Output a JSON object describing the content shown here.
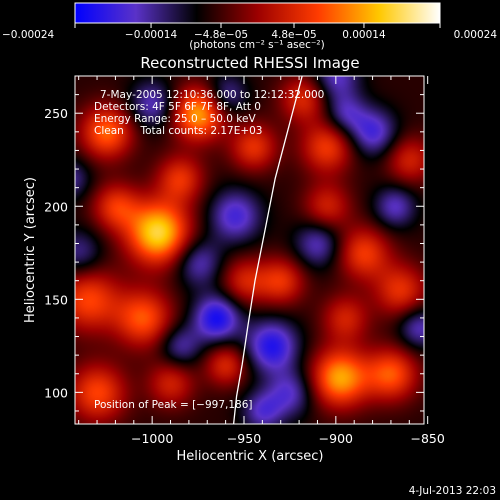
{
  "chart_data": {
    "type": "heatmap",
    "title": "Reconstructed RHESSI Image",
    "xlabel": "Heliocentric X (arcsec)",
    "ylabel": "Heliocentric Y (arcsec)",
    "xlim": [
      -1042,
      -852
    ],
    "ylim": [
      83,
      270
    ],
    "x_ticks": [
      -1000,
      -950,
      -900,
      -850
    ],
    "x_tick_labels": [
      "−1000",
      "−950",
      "−900",
      "−850"
    ],
    "y_ticks": [
      100,
      150,
      200,
      250
    ],
    "y_tick_labels": [
      "100",
      "150",
      "200",
      "250"
    ],
    "colorbar": {
      "min": -0.00024,
      "max": 0.00024,
      "tick_values": [
        -0.00024,
        -0.00014,
        -4.8e-05,
        4.8e-05,
        0.00014,
        0.00024
      ],
      "tick_labels": [
        "−0.00024",
        "−0.00014",
        "−4.8e−05",
        "4.8e−05",
        "0.00014",
        "0.00024"
      ],
      "unit_label": "(photons cm⁻² s⁻¹ asec⁻²)",
      "colors": [
        "#0000ff",
        "#5a32c8",
        "#000000",
        "#9c0000",
        "#ff3c00",
        "#ffc800",
        "#ffffff"
      ]
    },
    "annotations": {
      "time_range": "7‑May‑2005 12:10:36.000 to 12:12:32.000",
      "detectors": "Detectors: 4F 5F 6F 7F 8F, Att 0",
      "energy_range": "Energy Range: 25.0 – 50.0 keV",
      "clean_counts": "Clean     Total counts: 2.17E+03",
      "peak_position": "Position of Peak = [−997,186]"
    },
    "limb": [
      [
        -917,
        275
      ],
      [
        -925,
        245
      ],
      [
        -933,
        215
      ],
      [
        -939,
        185
      ],
      [
        -944,
        160
      ],
      [
        -948,
        135
      ],
      [
        -951,
        115
      ],
      [
        -954,
        98
      ],
      [
        -956,
        80
      ]
    ],
    "blobs": [
      [
        -997,
        186,
        0.00024,
        12
      ],
      [
        -1025,
        240,
        0.00016,
        10
      ],
      [
        -1020,
        200,
        0.00012,
        9
      ],
      [
        -1035,
        150,
        0.00014,
        12
      ],
      [
        -1005,
        140,
        0.00015,
        11
      ],
      [
        -975,
        250,
        0.0002,
        10
      ],
      [
        -945,
        232,
        0.00012,
        9
      ],
      [
        -905,
        232,
        0.00013,
        10
      ],
      [
        -905,
        200,
        0.0001,
        9
      ],
      [
        -918,
        258,
        0.00011,
        9
      ],
      [
        -885,
        175,
        0.00013,
        10
      ],
      [
        -865,
        155,
        0.00012,
        10
      ],
      [
        -860,
        225,
        0.0001,
        9
      ],
      [
        -895,
        140,
        0.0001,
        9
      ],
      [
        -870,
        110,
        0.00015,
        10
      ],
      [
        -898,
        108,
        0.0002,
        11
      ],
      [
        -930,
        160,
        0.00012,
        9
      ],
      [
        -950,
        160,
        0.0001,
        9
      ],
      [
        -1030,
        100,
        0.00014,
        11
      ],
      [
        -990,
        105,
        0.0001,
        9
      ],
      [
        -985,
        215,
        0.00012,
        9
      ],
      [
        -960,
        115,
        0.00011,
        8
      ],
      [
        -955,
        195,
        -0.00012,
        10
      ],
      [
        -1000,
        255,
        -0.0001,
        9
      ],
      [
        -960,
        260,
        -9e-05,
        8
      ],
      [
        -1040,
        175,
        -8e-05,
        9
      ],
      [
        -975,
        170,
        -0.0001,
        9
      ],
      [
        -935,
        125,
        -0.00015,
        10
      ],
      [
        -965,
        140,
        -0.00016,
        9
      ],
      [
        -925,
        100,
        -0.0001,
        9
      ],
      [
        -880,
        240,
        -0.00012,
        9
      ],
      [
        -868,
        200,
        -0.0001,
        8
      ],
      [
        -910,
        180,
        -0.0001,
        9
      ],
      [
        -900,
        270,
        -0.0001,
        9
      ],
      [
        -985,
        125,
        -9e-05,
        8
      ],
      [
        -1045,
        215,
        -8e-05,
        8
      ],
      [
        -855,
        135,
        -0.0001,
        8
      ],
      [
        -940,
        90,
        -0.0001,
        8
      ],
      [
        -895,
        250,
        -9e-05,
        8
      ]
    ]
  },
  "footer": {
    "timestamp": "4‑Jul‑2013 22:03"
  }
}
